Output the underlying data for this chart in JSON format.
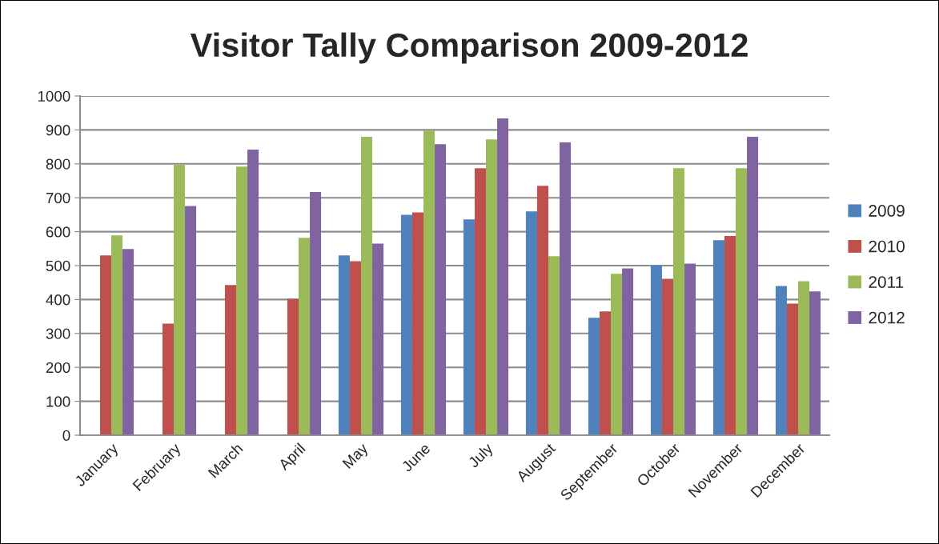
{
  "chart_data": {
    "type": "bar",
    "title": "Visitor Tally Comparison 2009-2012",
    "categories": [
      "January",
      "February",
      "March",
      "April",
      "May",
      "June",
      "July",
      "August",
      "September",
      "October",
      "November",
      "December"
    ],
    "series": [
      {
        "name": "2009",
        "color": "#4f81bd",
        "values": [
          null,
          null,
          null,
          null,
          530,
          650,
          636,
          660,
          346,
          501,
          575,
          440
        ]
      },
      {
        "name": "2010",
        "color": "#c0504d",
        "values": [
          530,
          329,
          443,
          402,
          513,
          657,
          787,
          735,
          365,
          461,
          587,
          388
        ]
      },
      {
        "name": "2011",
        "color": "#9bbb59",
        "values": [
          589,
          798,
          792,
          582,
          880,
          898,
          872,
          528,
          476,
          787,
          787,
          454
        ]
      },
      {
        "name": "2012",
        "color": "#8064a2",
        "values": [
          549,
          676,
          842,
          717,
          565,
          858,
          934,
          863,
          492,
          506,
          880,
          424
        ]
      }
    ],
    "ylim": [
      0,
      1000
    ],
    "yticks": [
      0,
      100,
      200,
      300,
      400,
      500,
      600,
      700,
      800,
      900,
      1000
    ],
    "grid": "y",
    "legend": "right"
  }
}
